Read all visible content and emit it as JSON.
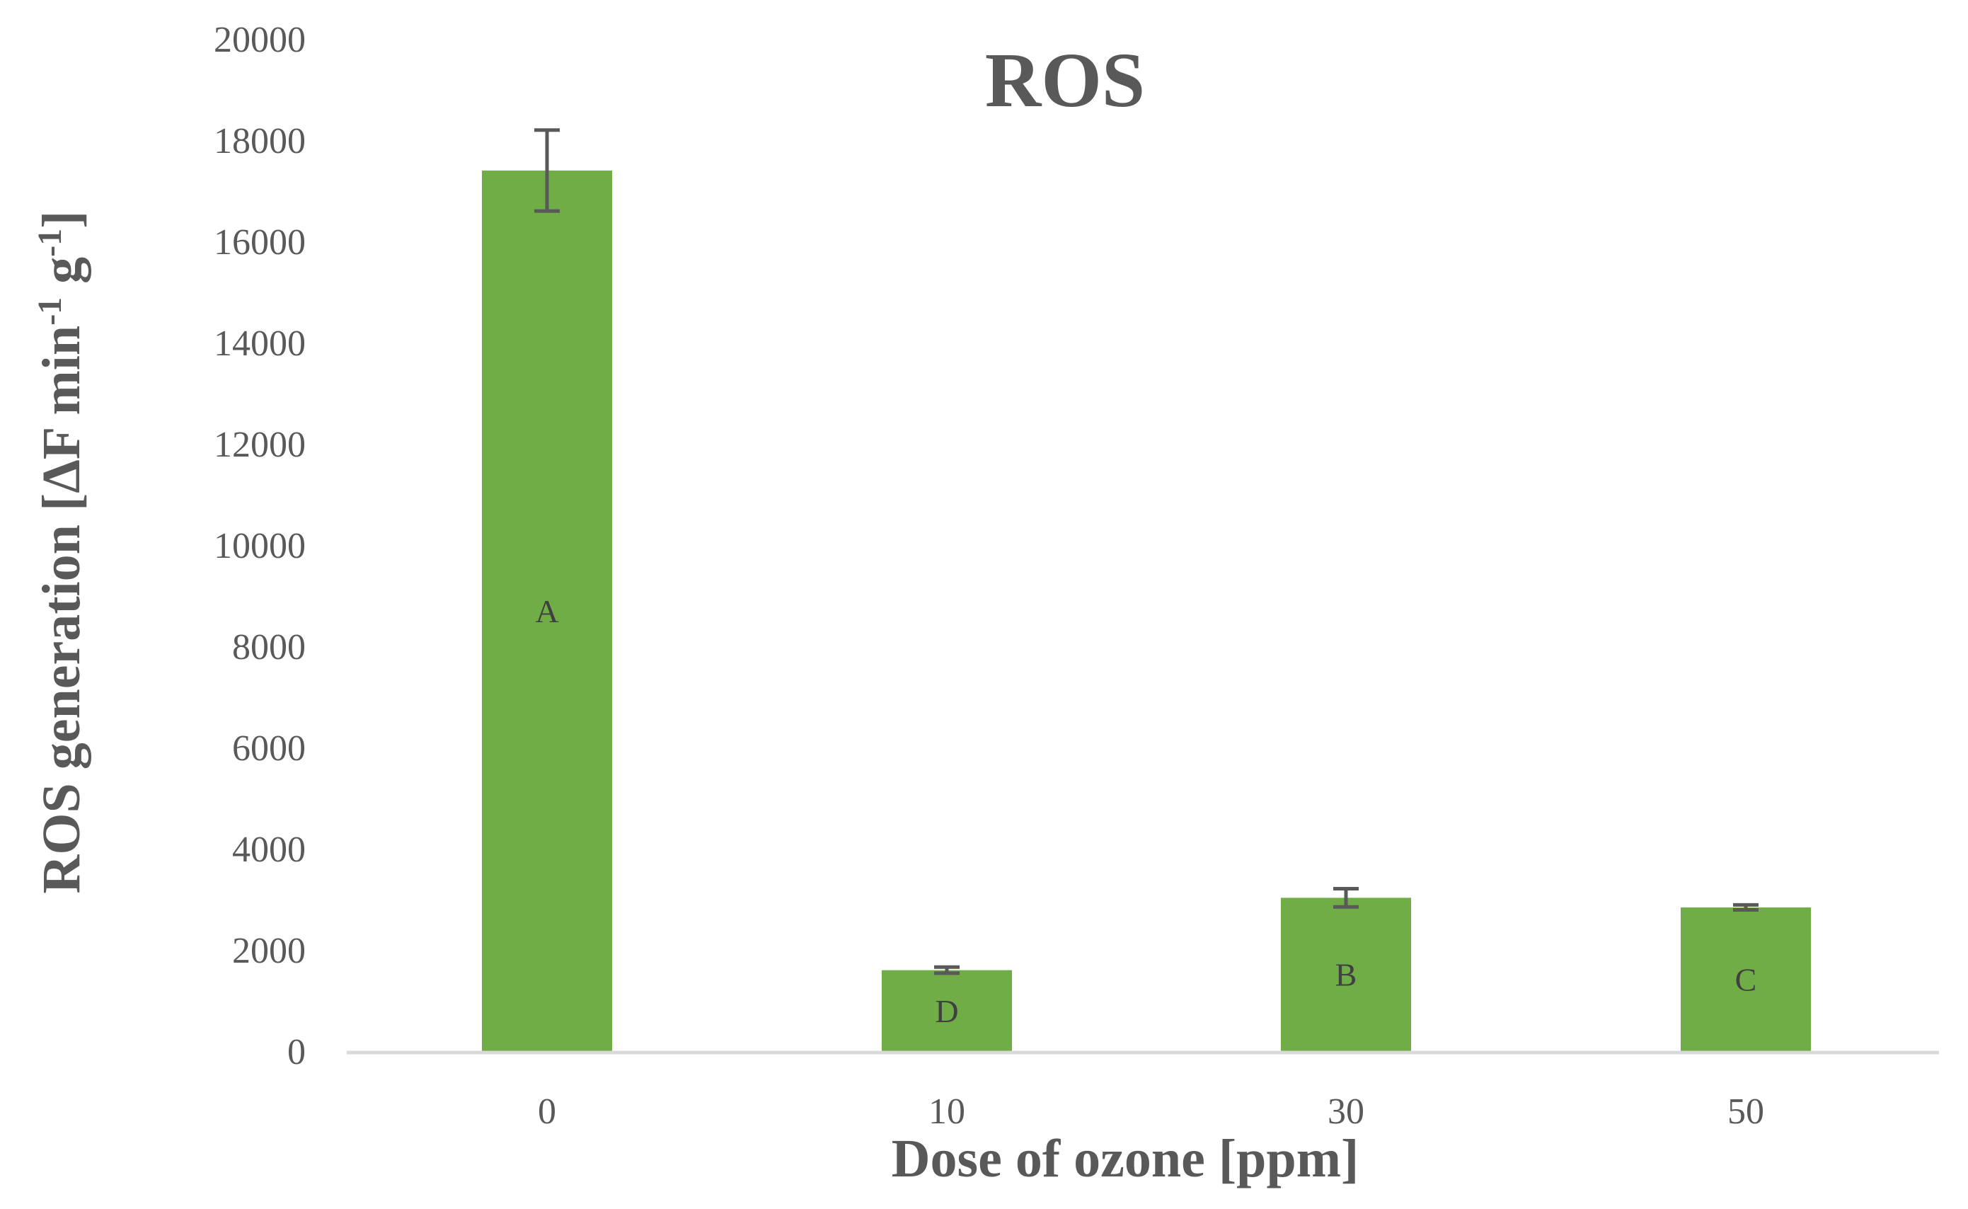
{
  "chart_data": {
    "type": "bar",
    "title": "ROS",
    "xlabel": "Dose of ozone [ppm]",
    "ylabel": {
      "main": "ROS generation [ΔF min",
      "sup1": "-1",
      "mid": " g",
      "sup2": "-1",
      "end": "]"
    },
    "categories": [
      "0",
      "10",
      "30",
      "50"
    ],
    "values": [
      17400,
      1600,
      3030,
      2840
    ],
    "error": [
      800,
      60,
      180,
      50
    ],
    "letters": [
      "A",
      "D",
      "B",
      "C"
    ],
    "ylim": [
      0,
      20000
    ],
    "yticks": [
      0,
      2000,
      4000,
      6000,
      8000,
      10000,
      12000,
      14000,
      16000,
      18000,
      20000
    ],
    "grid": false,
    "legend": "none",
    "colors": {
      "bar": "#70ad47",
      "error_bar": "#595959",
      "axis_line": "#d9d9d9"
    }
  }
}
